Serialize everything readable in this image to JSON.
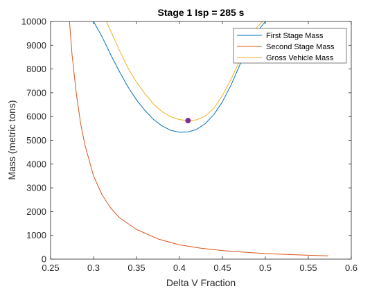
{
  "chart_data": {
    "type": "line",
    "title": "Stage 1 Isp = 285 s",
    "xlabel": "Delta V Fraction",
    "ylabel": "Mass (metric tons)",
    "xlim": [
      0.25,
      0.6
    ],
    "ylim": [
      0,
      10000
    ],
    "xticks": [
      0.25,
      0.3,
      0.35,
      0.4,
      0.45,
      0.5,
      0.55,
      0.6
    ],
    "xtick_labels": [
      "0.25",
      "0.3",
      "0.35",
      "0.4",
      "0.45",
      "0.5",
      "0.55",
      "0.6"
    ],
    "yticks": [
      0,
      1000,
      2000,
      3000,
      4000,
      5000,
      6000,
      7000,
      8000,
      9000,
      10000
    ],
    "ytick_labels": [
      "0",
      "1000",
      "2000",
      "3000",
      "4000",
      "5000",
      "6000",
      "7000",
      "8000",
      "9000",
      "10000"
    ],
    "grid": false,
    "legend_position": "top-right",
    "series": [
      {
        "name": "First Stage Mass",
        "color": "#0072BD",
        "x": [
          0.3,
          0.31,
          0.32,
          0.33,
          0.34,
          0.35,
          0.36,
          0.37,
          0.38,
          0.39,
          0.4,
          0.41,
          0.42,
          0.43,
          0.44,
          0.45,
          0.46,
          0.47,
          0.48,
          0.49,
          0.5
        ],
        "y": [
          10000,
          9350,
          8600,
          7900,
          7250,
          6700,
          6250,
          5870,
          5600,
          5420,
          5340,
          5350,
          5460,
          5700,
          6080,
          6620,
          7320,
          8150,
          8950,
          9550,
          10000
        ]
      },
      {
        "name": "Second Stage Mass",
        "color": "#D95319",
        "x": [
          0.272,
          0.275,
          0.28,
          0.285,
          0.29,
          0.3,
          0.31,
          0.32,
          0.33,
          0.35,
          0.375,
          0.4,
          0.425,
          0.45,
          0.475,
          0.5,
          0.525,
          0.55,
          0.573
        ],
        "y": [
          10000,
          8600,
          6950,
          5700,
          4800,
          3500,
          2700,
          2150,
          1750,
          1250,
          850,
          600,
          460,
          360,
          290,
          235,
          195,
          165,
          140
        ]
      },
      {
        "name": "Gross Vehicle Mass",
        "color": "#EDB120",
        "x": [
          0.315,
          0.32,
          0.33,
          0.34,
          0.35,
          0.36,
          0.37,
          0.38,
          0.39,
          0.4,
          0.41,
          0.42,
          0.43,
          0.44,
          0.45,
          0.46,
          0.47,
          0.48,
          0.49,
          0.497
        ],
        "y": [
          10000,
          9600,
          8800,
          8050,
          7450,
          6950,
          6520,
          6200,
          5990,
          5870,
          5830,
          5860,
          6020,
          6350,
          6880,
          7560,
          8350,
          9150,
          9750,
          10000
        ]
      }
    ],
    "marker": {
      "x": 0.41,
      "y": 5830,
      "color": "#7E2F8E"
    }
  }
}
